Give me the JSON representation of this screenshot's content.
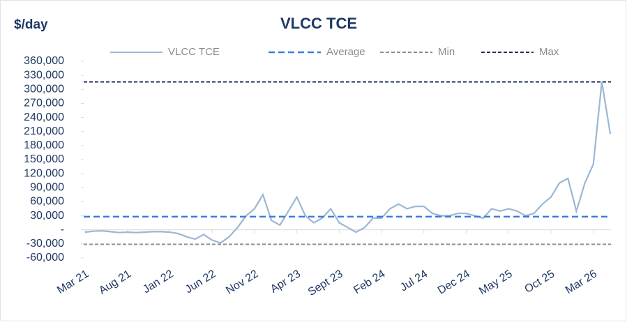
{
  "chart_data": {
    "type": "line",
    "title": "VLCC TCE",
    "y_label": "$/day",
    "categories": [
      "Mar 21",
      null,
      null,
      null,
      null,
      "Aug 21",
      null,
      null,
      null,
      null,
      "Jan 22",
      null,
      null,
      null,
      null,
      "Jun 22",
      null,
      null,
      null,
      null,
      "Nov 22",
      null,
      null,
      null,
      null,
      "Apr 23",
      null,
      null,
      null,
      null,
      "Sept 23",
      null,
      null,
      null,
      null,
      "Feb 24",
      null,
      null,
      null,
      null,
      "Jul 24",
      null,
      null,
      null,
      null,
      "Dec 24",
      null,
      null,
      null,
      null,
      "May 25",
      null,
      null,
      null,
      null,
      "Oct 25",
      null,
      null,
      null,
      null,
      "Mar 26",
      null,
      null
    ],
    "series": [
      {
        "name": "VLCC TCE",
        "color": "#9bb7d4",
        "values": [
          -5000,
          -3000,
          -2000,
          -4000,
          -6000,
          -5000,
          -6000,
          -5000,
          -4000,
          -4000,
          -5000,
          -8000,
          -15000,
          -20000,
          -10000,
          -22000,
          -28000,
          -15000,
          5000,
          30000,
          45000,
          75000,
          20000,
          10000,
          40000,
          70000,
          30000,
          15000,
          25000,
          45000,
          15000,
          5000,
          -5000,
          5000,
          25000,
          25000,
          45000,
          55000,
          45000,
          50000,
          50000,
          35000,
          30000,
          30000,
          35000,
          35000,
          30000,
          25000,
          45000,
          40000,
          45000,
          40000,
          30000,
          35000,
          55000,
          70000,
          100000,
          110000,
          40000,
          100000,
          140000,
          316000,
          205000
        ]
      },
      {
        "name": "Average",
        "color": "#3b7dd8",
        "value": 28000
      },
      {
        "name": "Min",
        "color": "#8c8c8c",
        "value": -31000
      },
      {
        "name": "Max",
        "color": "#1f2f5c",
        "value": 316000
      }
    ],
    "ylim": [
      -60000,
      360000
    ],
    "yticks": [
      {
        "value": -60000,
        "label": "-60,000"
      },
      {
        "value": -30000,
        "label": "-30,000"
      },
      {
        "value": 0,
        "label": "-"
      },
      {
        "value": 30000,
        "label": "30,000"
      },
      {
        "value": 60000,
        "label": "60,000"
      },
      {
        "value": 90000,
        "label": "90,000"
      },
      {
        "value": 120000,
        "label": "120,000"
      },
      {
        "value": 150000,
        "label": "150,000"
      },
      {
        "value": 180000,
        "label": "180,000"
      },
      {
        "value": 210000,
        "label": "210,000"
      },
      {
        "value": 240000,
        "label": "240,000"
      },
      {
        "value": 270000,
        "label": "270,000"
      },
      {
        "value": 300000,
        "label": "300,000"
      },
      {
        "value": 330000,
        "label": "330,000"
      },
      {
        "value": 360000,
        "label": "360,000"
      }
    ]
  }
}
